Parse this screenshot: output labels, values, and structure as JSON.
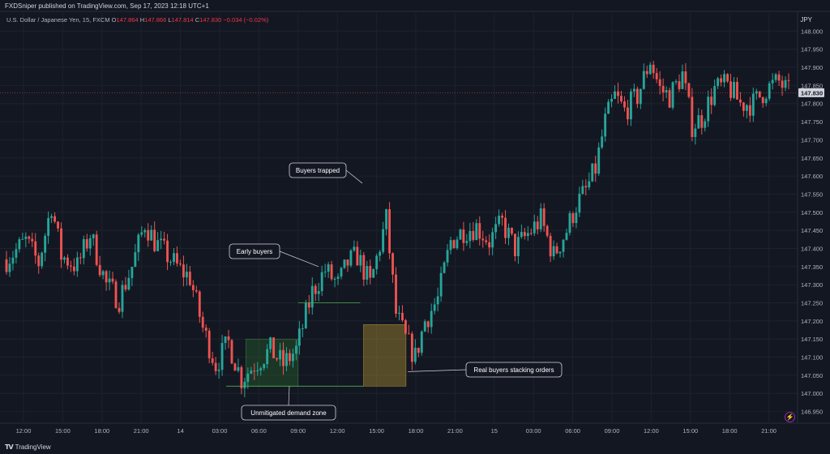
{
  "header": {
    "publisher_line": "FXDSniper published on TradingView.com, Sep 17, 2023 12:18 UTC+1",
    "symbol": "U.S. Dollar / Japanese Yen, 15, FXCM",
    "ohlc": [
      {
        "label": "O",
        "value": "147.864"
      },
      {
        "label": "H",
        "value": "147.866"
      },
      {
        "label": "L",
        "value": "147.814"
      },
      {
        "label": "C",
        "value": "147.830"
      }
    ],
    "change": "−0.034 (−0.02%)",
    "currency": "JPY"
  },
  "footer": {
    "brand": "TradingView"
  },
  "colors": {
    "up": "#26a69a",
    "down": "#ef5350",
    "background": "#131722",
    "grid": "#1e222d",
    "text": "#b2b5be",
    "zone_green": "#1b5e20",
    "zone_orange": "#7a6a1e",
    "price_label_bg": "#d1d4dc"
  },
  "chart_data": {
    "type": "candlestick",
    "title": "U.S. Dollar / Japanese Yen, 15, FXCM",
    "ylim": [
      146.92,
      148.05
    ],
    "y_ticks": [
      "148.000",
      "147.950",
      "147.900",
      "147.850",
      "147.800",
      "147.750",
      "147.700",
      "147.650",
      "147.600",
      "147.550",
      "147.500",
      "147.450",
      "147.400",
      "147.350",
      "147.300",
      "147.250",
      "147.200",
      "147.150",
      "147.100",
      "147.050",
      "147.000",
      "146.950"
    ],
    "x_ticks": [
      "12:00",
      "15:00",
      "18:00",
      "21:00",
      "14",
      "03:00",
      "06:00",
      "09:00",
      "12:00",
      "15:00",
      "18:00",
      "21:00",
      "15",
      "03:00",
      "06:00",
      "09:00",
      "12:00",
      "15:00",
      "18:00",
      "21:00"
    ],
    "last_price": "147.830",
    "close_path": [
      [
        0,
        147.37
      ],
      [
        6,
        147.42
      ],
      [
        10,
        147.36
      ],
      [
        14,
        147.52
      ],
      [
        17,
        147.38
      ],
      [
        22,
        147.35
      ],
      [
        26,
        147.44
      ],
      [
        31,
        147.3
      ],
      [
        35,
        147.26
      ],
      [
        39,
        147.35
      ],
      [
        43,
        147.47
      ],
      [
        46,
        147.42
      ],
      [
        50,
        147.38
      ],
      [
        54,
        147.34
      ],
      [
        57,
        147.32
      ],
      [
        61,
        147.18
      ],
      [
        65,
        147.08
      ],
      [
        69,
        147.14
      ],
      [
        73,
        147.04
      ],
      [
        77,
        147.08
      ],
      [
        82,
        147.12
      ],
      [
        86,
        147.08
      ],
      [
        90,
        147.12
      ],
      [
        95,
        147.28
      ],
      [
        99,
        147.34
      ],
      [
        103,
        147.3
      ],
      [
        106,
        147.36
      ],
      [
        109,
        147.38
      ],
      [
        113,
        147.3
      ],
      [
        118,
        147.48
      ],
      [
        121,
        147.22
      ],
      [
        124,
        147.15
      ],
      [
        127,
        147.1
      ],
      [
        130,
        147.2
      ],
      [
        134,
        147.26
      ],
      [
        138,
        147.42
      ],
      [
        142,
        147.45
      ],
      [
        146,
        147.46
      ],
      [
        150,
        147.42
      ],
      [
        154,
        147.47
      ],
      [
        158,
        147.4
      ],
      [
        162,
        147.44
      ],
      [
        166,
        147.48
      ],
      [
        170,
        147.38
      ],
      [
        174,
        147.45
      ],
      [
        177,
        147.52
      ],
      [
        180,
        147.56
      ],
      [
        183,
        147.62
      ],
      [
        186,
        147.75
      ],
      [
        189,
        147.82
      ],
      [
        192,
        147.78
      ],
      [
        196,
        147.82
      ],
      [
        200,
        147.92
      ],
      [
        203,
        147.84
      ],
      [
        206,
        147.82
      ],
      [
        210,
        147.88
      ],
      [
        213,
        147.74
      ],
      [
        216,
        147.76
      ],
      [
        220,
        147.84
      ],
      [
        224,
        147.85
      ],
      [
        228,
        147.8
      ],
      [
        232,
        147.8
      ],
      [
        236,
        147.84
      ],
      [
        240,
        147.86
      ],
      [
        243,
        147.83
      ]
    ],
    "candle_count": 244,
    "zones": [
      {
        "name": "Unmitigated demand zone",
        "x_range": [
          "05:00",
          "09:00"
        ],
        "y_range": [
          147.02,
          147.15
        ],
        "color": "green"
      },
      {
        "name": "Real buyers stacking orders",
        "x_range": [
          "14:00",
          "17:15"
        ],
        "y_range": [
          147.02,
          147.19
        ],
        "color": "orange"
      }
    ],
    "annotations": [
      {
        "text": "Buyers trapped"
      },
      {
        "text": "Early buyers"
      },
      {
        "text": "Unmitigated demand zone"
      },
      {
        "text": "Real buyers stacking orders"
      }
    ]
  }
}
